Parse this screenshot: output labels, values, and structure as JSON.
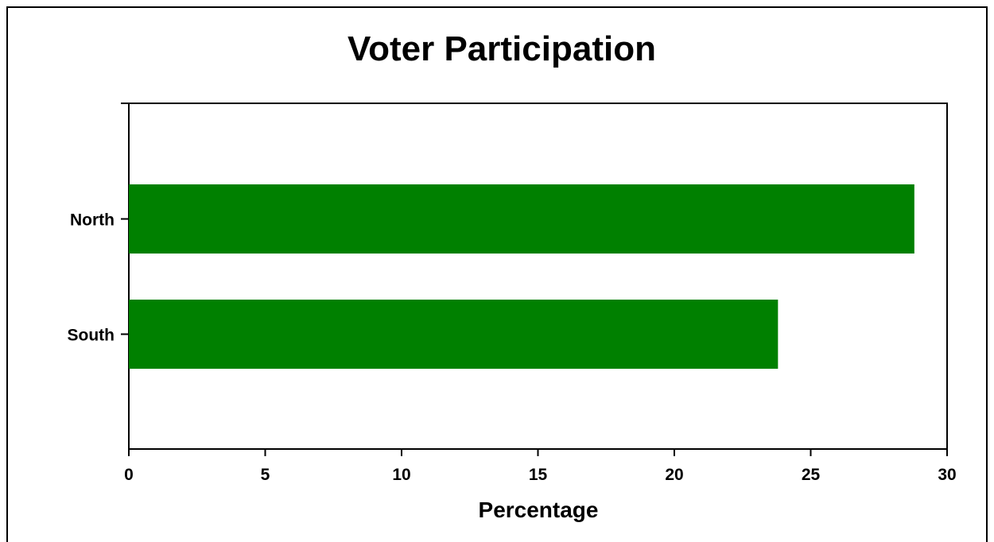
{
  "chart_data": {
    "type": "bar",
    "orientation": "horizontal",
    "title": "Voter Participation",
    "xlabel": "Percentage",
    "ylabel": "",
    "categories": [
      "North",
      "South"
    ],
    "values": [
      28.8,
      23.8
    ],
    "xlim": [
      0,
      30
    ],
    "xticks": [
      0,
      5,
      10,
      15,
      20,
      25,
      30
    ],
    "xtick_labels": [
      "0",
      "5",
      "10",
      "15",
      "20",
      "25",
      "30"
    ],
    "grid": false,
    "legend": "none",
    "colors": {
      "bar": "#008000",
      "axis": "#000000",
      "background": "#ffffff"
    }
  }
}
